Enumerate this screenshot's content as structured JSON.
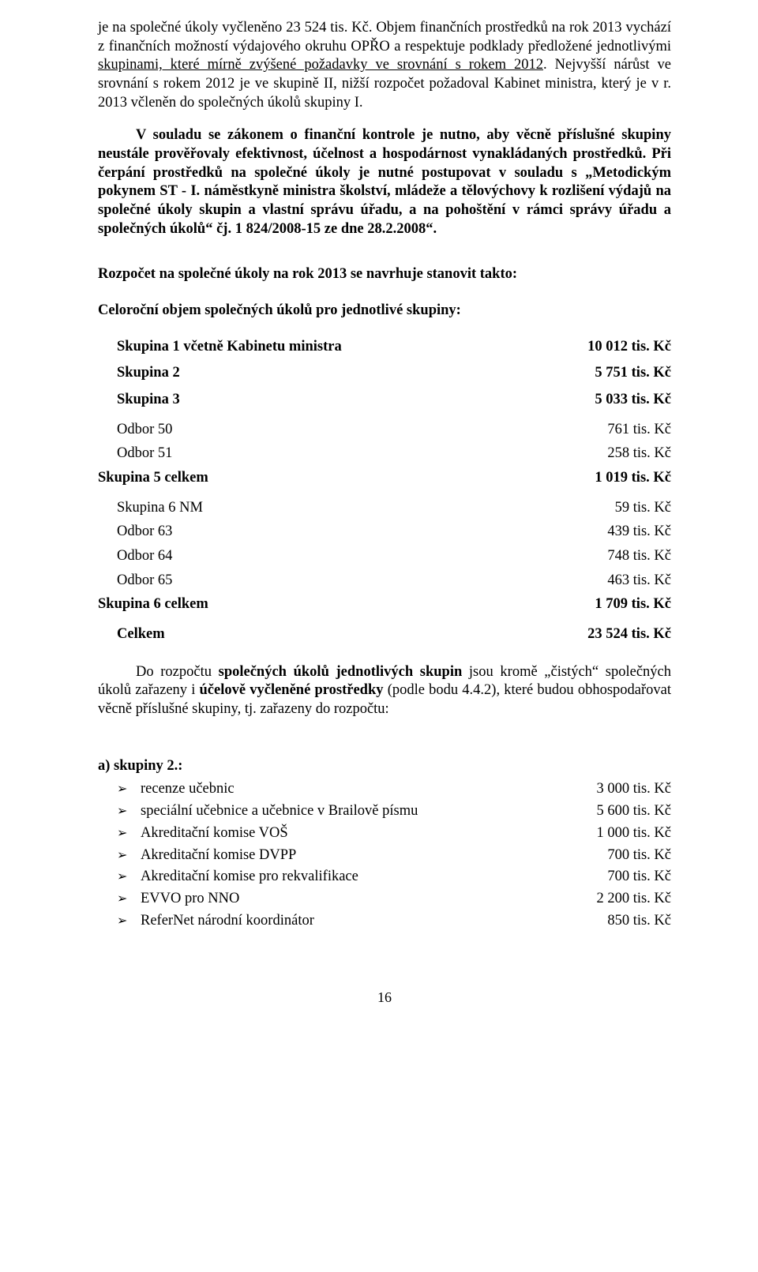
{
  "p1": {
    "run1": "je na společné úkoly vyčleněno 23 524 tis. Kč. Objem finančních prostředků na rok 2013 vychází z finančních možností výdajového okruhu OPŘO a respektuje podklady předložené jednotlivými ",
    "underlined": "skupinami, které mírně zvýšené požadavky ve srovnání s rokem 2012",
    "run2": ". Nejvyšší nárůst ve srovnání s rokem 2012 je ve skupině II, nižší rozpočet požadoval Kabinet ministra, který je v r. 2013 včleněn do společných úkolů skupiny I."
  },
  "p2": {
    "run1": "V souladu se zákonem o finanční kontrole je nutno, aby věcně příslušné skupiny neustále prověřovaly efektivnost, účelnost a hospodárnost vynakládaných prostředků. Při čerpání prostředků na společné úkoly je nutné postupovat v souladu s „Metodickým pokynem ST - I. náměstkyně ministra školství, mládeže a tělovýchovy k rozlišení výdajů na společné úkoly skupin a vlastní správu úřadu, a na pohoštění v rámci správy úřadu a společných úkolů“ čj. 1 824/2008-15 ze dne 28.2.2008“."
  },
  "heading1": "Rozpočet na společné úkoly na rok 2013 se navrhuje stanovit takto:",
  "heading2": "Celoroční objem společných úkolů pro jednotlivé skupiny:",
  "rows": {
    "sk1": {
      "label": "Skupina 1 včetně Kabinetu ministra",
      "value": "10 012 tis. Kč"
    },
    "sk2": {
      "label": "Skupina 2",
      "value": "5 751 tis. Kč"
    },
    "sk3": {
      "label": "Skupina 3",
      "value": "5 033 tis. Kč"
    },
    "o50": {
      "label": "Odbor 50",
      "value": "761 tis. Kč"
    },
    "o51": {
      "label": "Odbor 51",
      "value": "258 tis. Kč"
    },
    "sk5": {
      "label": "Skupina 5 celkem",
      "value": "1 019 tis. Kč"
    },
    "sk6nm": {
      "label": "Skupina 6 NM",
      "value": "59 tis. Kč"
    },
    "o63": {
      "label": "Odbor 63",
      "value": "439 tis. Kč"
    },
    "o64": {
      "label": "Odbor 64",
      "value": "748 tis. Kč"
    },
    "o65": {
      "label": "Odbor 65",
      "value": "463 tis. Kč"
    },
    "sk6": {
      "label": "Skupina 6 celkem",
      "value": "1 709 tis. Kč"
    },
    "total": {
      "label": "Celkem",
      "value": "23 524 tis. Kč"
    }
  },
  "closing": {
    "run1": "Do rozpočtu ",
    "bold1": "společných úkolů jednotlivých skupin",
    "run2": " jsou kromě „čistých“ společných úkolů zařazeny i ",
    "bold2": "účelově vyčleněné prostředky",
    "run3": " (podle bodu 4.4.2), které budou obhospodařovat věcně příslušné skupiny, tj. zařazeny do rozpočtu:"
  },
  "listHeading": "a) skupiny 2.:",
  "bullets": [
    {
      "label": "recenze učebnic",
      "value": "3 000 tis. Kč"
    },
    {
      "label": "speciální učebnice a učebnice v Brailově písmu",
      "value": "5 600 tis. Kč"
    },
    {
      "label": "Akreditační komise VOŠ",
      "value": "1 000 tis. Kč"
    },
    {
      "label": "Akreditační komise DVPP",
      "value": "700 tis. Kč"
    },
    {
      "label": "Akreditační komise pro rekvalifikace",
      "value": "700 tis. Kč"
    },
    {
      "label": "EVVO pro NNO",
      "value": "2 200 tis. Kč"
    },
    {
      "label": "ReferNet národní koordinátor",
      "value": "850 tis. Kč"
    }
  ],
  "pageNumber": "16",
  "glyphs": {
    "bullet": "➢"
  }
}
